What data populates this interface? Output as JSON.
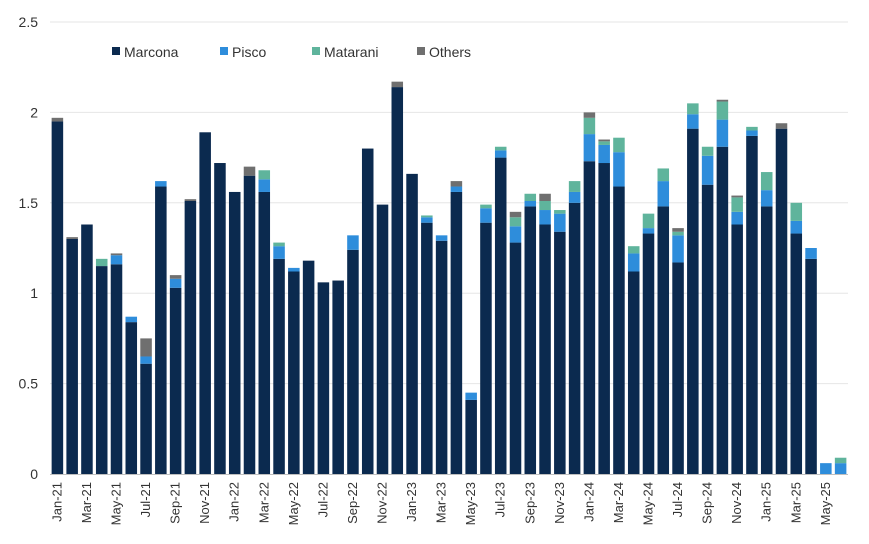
{
  "chart_data": {
    "type": "bar",
    "stacked": true,
    "ylim": [
      0,
      2.5
    ],
    "yticks": [
      0,
      0.5,
      1,
      1.5,
      2,
      2.5
    ],
    "ytick_labels": [
      "0",
      "0.5",
      "1",
      "1.5",
      "2",
      "2.5"
    ],
    "grid": true,
    "legend_position": "top-left",
    "x": [
      "Jan-21",
      "Feb-21",
      "Mar-21",
      "Apr-21",
      "May-21",
      "Jun-21",
      "Jul-21",
      "Aug-21",
      "Sep-21",
      "Oct-21",
      "Nov-21",
      "Dec-21",
      "Jan-22",
      "Feb-22",
      "Mar-22",
      "Apr-22",
      "May-22",
      "Jun-22",
      "Jul-22",
      "Aug-22",
      "Sep-22",
      "Oct-22",
      "Nov-22",
      "Dec-22",
      "Jan-23",
      "Feb-23",
      "Mar-23",
      "Apr-23",
      "May-23",
      "Jun-23",
      "Jul-23",
      "Aug-23",
      "Sep-23",
      "Oct-23",
      "Nov-23",
      "Dec-23",
      "Jan-24",
      "Feb-24",
      "Mar-24",
      "Apr-24",
      "May-24",
      "Jun-24",
      "Jul-24",
      "Aug-24",
      "Sep-24",
      "Oct-24",
      "Nov-24",
      "Dec-24",
      "Jan-25",
      "Feb-25",
      "Mar-25",
      "Apr-25",
      "May-25",
      "Jun-25"
    ],
    "x_tick_labels": [
      "Jan-21",
      "Mar-21",
      "May-21",
      "Jul-21",
      "Sep-21",
      "Nov-21",
      "Jan-22",
      "Mar-22",
      "May-22",
      "Jul-22",
      "Sep-22",
      "Nov-22",
      "Jan-23",
      "Mar-23",
      "May-23",
      "Jul-23",
      "Sep-23",
      "Nov-23",
      "Jan-24",
      "Mar-24",
      "May-24",
      "Jul-24",
      "Sep-24",
      "Nov-24",
      "Jan-25",
      "Mar-25",
      "May-25"
    ],
    "series": [
      {
        "name": "Marcona",
        "color": "#0b2a4f",
        "values": [
          1.95,
          1.3,
          1.38,
          1.15,
          1.16,
          0.84,
          0.61,
          1.59,
          1.03,
          1.51,
          1.89,
          1.72,
          1.56,
          1.65,
          1.56,
          1.19,
          1.12,
          1.18,
          1.06,
          1.07,
          1.24,
          1.8,
          1.49,
          2.14,
          1.66,
          1.39,
          1.29,
          1.56,
          0.41,
          1.39,
          1.75,
          1.28,
          1.48,
          1.38,
          1.34,
          1.5,
          1.73,
          1.72,
          1.59,
          1.12,
          1.33,
          1.48,
          1.17,
          1.91,
          1.6,
          1.81,
          1.38,
          1.87,
          1.48,
          1.91,
          1.33,
          1.19,
          0,
          0
        ]
      },
      {
        "name": "Pisco",
        "color": "#2e8ddb",
        "values": [
          0,
          0,
          0,
          0,
          0.05,
          0.03,
          0.04,
          0.03,
          0.05,
          0,
          0,
          0,
          0,
          0,
          0.07,
          0.07,
          0.02,
          0,
          0,
          0,
          0.08,
          0,
          0,
          0,
          0,
          0.03,
          0.03,
          0.03,
          0.04,
          0.08,
          0.04,
          0.09,
          0.03,
          0.08,
          0.1,
          0.06,
          0.15,
          0.1,
          0.19,
          0.1,
          0.03,
          0.14,
          0.15,
          0.08,
          0.16,
          0.15,
          0.07,
          0.03,
          0.09,
          0,
          0.07,
          0.06,
          0.06,
          0.06
        ]
      },
      {
        "name": "Matarani",
        "color": "#5fb49c",
        "values": [
          0,
          0,
          0,
          0.04,
          0,
          0,
          0,
          0,
          0,
          0,
          0,
          0,
          0,
          0,
          0.05,
          0.02,
          0,
          0,
          0,
          0,
          0,
          0,
          0,
          0,
          0,
          0.01,
          0,
          0,
          0,
          0.02,
          0.02,
          0.05,
          0.04,
          0.05,
          0.02,
          0.06,
          0.09,
          0.02,
          0.08,
          0.04,
          0.08,
          0.07,
          0.02,
          0.06,
          0.05,
          0.1,
          0.08,
          0.02,
          0.1,
          0,
          0.1,
          0,
          0,
          0.03
        ]
      },
      {
        "name": "Others",
        "color": "#6f6f6f",
        "values": [
          0.02,
          0.01,
          0,
          0,
          0.01,
          0,
          0.1,
          0,
          0.02,
          0.01,
          0,
          0,
          0,
          0.05,
          0,
          0,
          0,
          0,
          0,
          0,
          0,
          0,
          0,
          0.03,
          0,
          0,
          0,
          0.03,
          0,
          0,
          0,
          0.03,
          0,
          0.04,
          0,
          0,
          0.03,
          0.01,
          0,
          0,
          0,
          0,
          0.02,
          0,
          0,
          0.01,
          0.01,
          0,
          0,
          0.03,
          0,
          0,
          0,
          0
        ]
      }
    ]
  }
}
